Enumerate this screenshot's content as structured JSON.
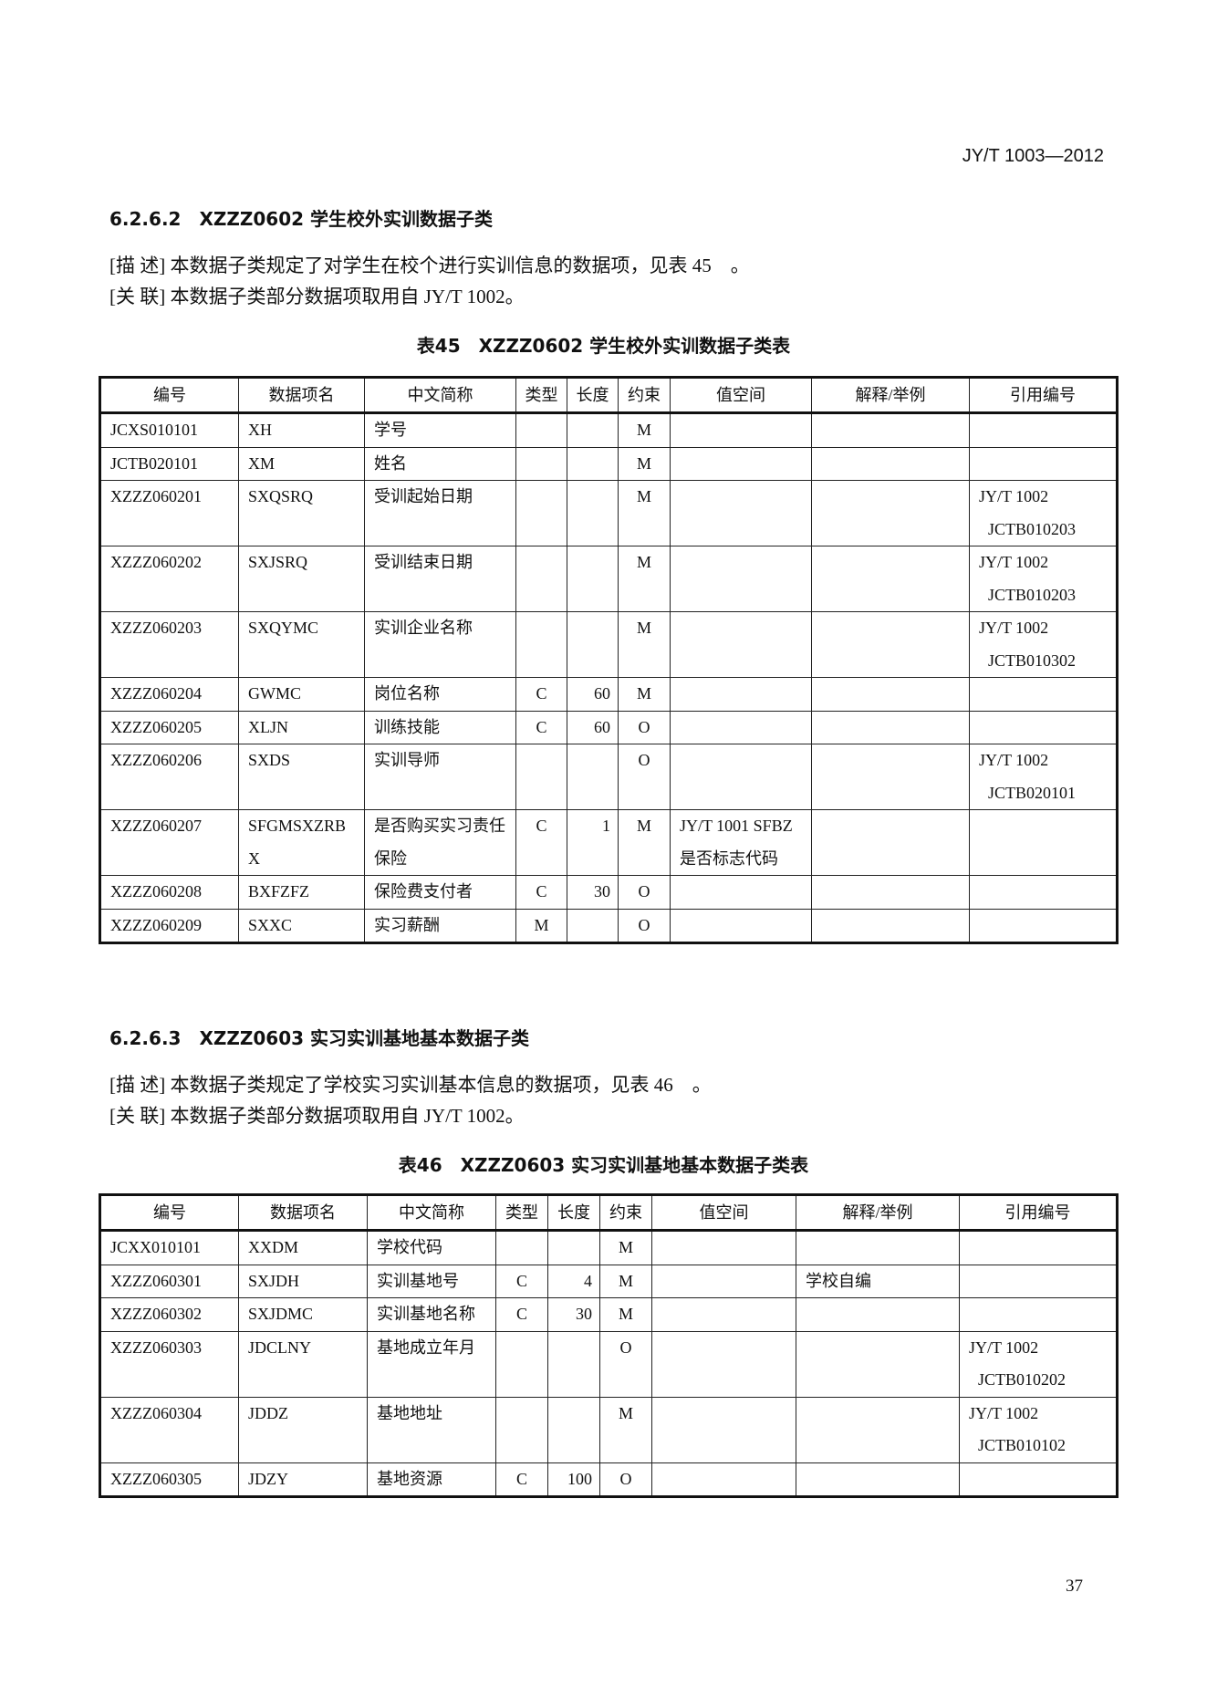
{
  "page_header": "JY/T 1003—2012",
  "page_number": "37",
  "sections": [
    {
      "heading": "6.2.6.2　XZZZ0602 学生校外实训数据子类",
      "desc": "[描 述] 本数据子类规定了对学生在校个进行实训信息的数据项，见表 45　。",
      "rel": "[关 联] 本数据子类部分数据项取用自 JY/T 1002。",
      "caption": "表45　XZZZ0602 学生校外实训数据子类表",
      "columns": [
        "编号",
        "数据项名",
        "中文简称",
        "类型",
        "长度",
        "约束",
        "值空间",
        "解释/举例",
        "引用编号"
      ],
      "rows": [
        [
          "JCXS010101",
          "XH",
          "学号",
          "",
          "",
          "M",
          "",
          "",
          ""
        ],
        [
          "JCTB020101",
          "XM",
          "姓名",
          "",
          "",
          "M",
          "",
          "",
          ""
        ],
        [
          "XZZZ060201",
          "SXQSRQ",
          "受训起始日期",
          "",
          "",
          "M",
          "",
          "",
          "JY/T 1002|JCTB010203"
        ],
        [
          "XZZZ060202",
          "SXJSRQ",
          "受训结束日期",
          "",
          "",
          "M",
          "",
          "",
          "JY/T 1002|JCTB010203"
        ],
        [
          "XZZZ060203",
          "SXQYMC",
          "实训企业名称",
          "",
          "",
          "M",
          "",
          "",
          "JY/T 1002|JCTB010302"
        ],
        [
          "XZZZ060204",
          "GWMC",
          "岗位名称",
          "C",
          "60",
          "M",
          "",
          "",
          ""
        ],
        [
          "XZZZ060205",
          "XLJN",
          "训练技能",
          "C",
          "60",
          "O",
          "",
          "",
          ""
        ],
        [
          "XZZZ060206",
          "SXDS",
          "实训导师",
          "",
          "",
          "O",
          "",
          "",
          "JY/T 1002|JCTB020101"
        ],
        [
          "XZZZ060207",
          "SFGMSXZRBX",
          "是否购买实习责任保险",
          "C",
          "1",
          "M",
          "JY/T 1001 SFBZ 是否标志代码",
          "",
          ""
        ],
        [
          "XZZZ060208",
          "BXFZFZ",
          "保险费支付者",
          "C",
          "30",
          "O",
          "",
          "",
          ""
        ],
        [
          "XZZZ060209",
          "SXXC",
          "实习薪酬",
          "M",
          "",
          "O",
          "",
          "",
          ""
        ]
      ]
    },
    {
      "heading": "6.2.6.3　XZZZ0603 实习实训基地基本数据子类",
      "desc": "[描 述] 本数据子类规定了学校实习实训基本信息的数据项，见表 46　。",
      "rel": "[关 联] 本数据子类部分数据项取用自 JY/T 1002。",
      "caption": "表46　XZZZ0603 实习实训基地基本数据子类表",
      "columns": [
        "编号",
        "数据项名",
        "中文简称",
        "类型",
        "长度",
        "约束",
        "值空间",
        "解释/举例",
        "引用编号"
      ],
      "rows": [
        [
          "JCXX010101",
          "XXDM",
          "学校代码",
          "",
          "",
          "M",
          "",
          "",
          ""
        ],
        [
          "XZZZ060301",
          "SXJDH",
          "实训基地号",
          "C",
          "4",
          "M",
          "",
          "学校自编",
          ""
        ],
        [
          "XZZZ060302",
          "SXJDMC",
          "实训基地名称",
          "C",
          "30",
          "M",
          "",
          "",
          ""
        ],
        [
          "XZZZ060303",
          "JDCLNY",
          "基地成立年月",
          "",
          "",
          "O",
          "",
          "",
          "JY/T 1002|JCTB010202"
        ],
        [
          "XZZZ060304",
          "JDDZ",
          "基地地址",
          "",
          "",
          "M",
          "",
          "",
          "JY/T 1002|JCTB010102"
        ],
        [
          "XZZZ060305",
          "JDZY",
          "基地资源",
          "C",
          "100",
          "O",
          "",
          "",
          ""
        ]
      ]
    }
  ]
}
